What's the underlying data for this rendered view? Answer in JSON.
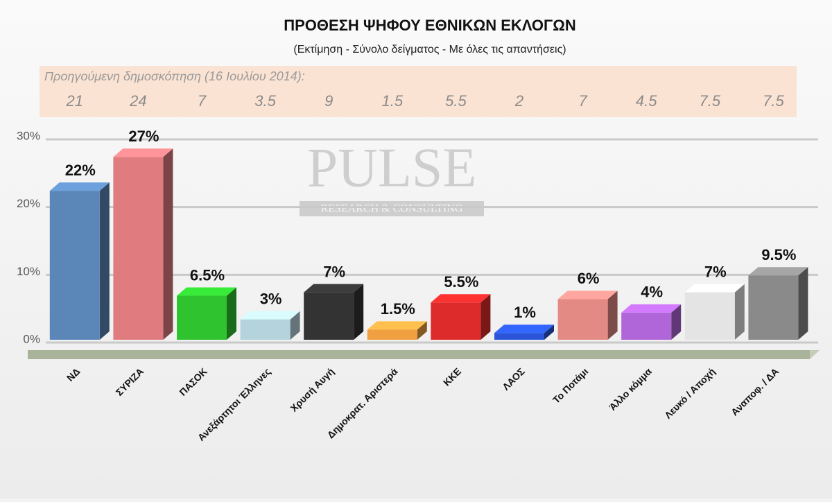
{
  "chart_data": {
    "type": "bar",
    "title": "ΠΡΟΘΕΣΗ ΨΗΦΟΥ ΕΘΝΙΚΩΝ ΕΚΛΟΓΩΝ",
    "subtitle": "(Εκτίμηση - Σύνολο δείγματος - Με όλες τις απαντήσεις)",
    "watermark": {
      "title": "PULSE",
      "subtitle": "RESEARCH & CONSULTING"
    },
    "previous": {
      "label": "Προηγούμενη δημοσκόπηση  (16 Ιουλίου 2014):",
      "values": [
        21,
        24,
        7,
        3.5,
        9,
        1.5,
        5.5,
        2,
        7,
        4.5,
        7.5,
        7.5
      ]
    },
    "categories": [
      "ΝΔ",
      "ΣΥΡΙΖΑ",
      "ΠΑΣΟΚ",
      "Ανεξάρτητοι Έλληνες",
      "Χρυσή Αυγή",
      "Δημοκρατ. Αριστερά",
      "ΚΚΕ",
      "ΛΑΟΣ",
      "Το Ποτάμι",
      "Άλλο κόμμα",
      "Λευκό / Αποχή",
      "Αναποφ. / ΔΑ"
    ],
    "values": [
      22,
      27,
      6.5,
      3,
      7,
      1.5,
      5.5,
      1,
      6,
      4,
      7,
      9.5
    ],
    "value_labels": [
      "22%",
      "27%",
      "6.5%",
      "3%",
      "7%",
      "1.5%",
      "5.5%",
      "1%",
      "6%",
      "4%",
      "7%",
      "9.5%"
    ],
    "colors": [
      "#5b86b8",
      "#e07c80",
      "#2fc42f",
      "#b5d3dc",
      "#333333",
      "#f0a040",
      "#dd2a2a",
      "#2a55d8",
      "#e38a84",
      "#b066d8",
      "#e4e4e4",
      "#8a8a8a"
    ],
    "ylim": [
      0,
      30
    ],
    "yticks": [
      {
        "value": 0,
        "label": "0%"
      },
      {
        "value": 10,
        "label": "10%"
      },
      {
        "value": 20,
        "label": "20%"
      },
      {
        "value": 30,
        "label": "30%"
      }
    ],
    "grid": true
  }
}
